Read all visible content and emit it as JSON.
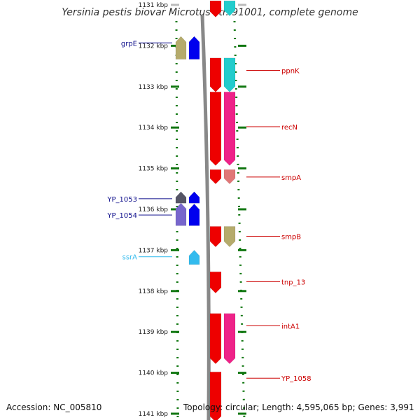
{
  "title": "Yersinia pestis biovar Microtus str. 91001, complete genome",
  "footer": {
    "accession": "Accession: NC_005810",
    "info": "Topology: circular; Length: 4,595,065 bp; Genes: 3,991"
  },
  "ticks": [
    {
      "label": "1131 kbp",
      "kbp": 1131,
      "faded": true
    },
    {
      "label": "1132 kbp",
      "kbp": 1132
    },
    {
      "label": "1133 kbp",
      "kbp": 1133
    },
    {
      "label": "1134 kbp",
      "kbp": 1134
    },
    {
      "label": "1135 kbp",
      "kbp": 1135
    },
    {
      "label": "1136 kbp",
      "kbp": 1136
    },
    {
      "label": "1137 kbp",
      "kbp": 1137
    },
    {
      "label": "1138 kbp",
      "kbp": 1138
    },
    {
      "label": "1139 kbp",
      "kbp": 1139
    },
    {
      "label": "1140 kbp",
      "kbp": 1140
    },
    {
      "label": "1141 kbp",
      "kbp": 1141
    }
  ],
  "genes": [
    {
      "name": "grpE",
      "side": "left",
      "color": "#0b0b8a",
      "label_kbp": 1131.93
    },
    {
      "name": "YP_1053",
      "side": "left",
      "color": "#0b0b8a",
      "label_kbp": 1135.74
    },
    {
      "name": "YP_1054",
      "side": "left",
      "color": "#0b0b8a",
      "label_kbp": 1136.14
    },
    {
      "name": "ssrA",
      "side": "left",
      "color": "#33bbee",
      "label_kbp": 1137.16
    },
    {
      "name": "ppnK",
      "side": "right",
      "color": "#cc0000",
      "label_kbp": 1132.6
    },
    {
      "name": "recN",
      "side": "right",
      "color": "#cc0000",
      "label_kbp": 1133.98
    },
    {
      "name": "smpA",
      "side": "right",
      "color": "#cc0000",
      "label_kbp": 1135.21
    },
    {
      "name": "smpB",
      "side": "right",
      "color": "#cc0000",
      "label_kbp": 1136.66
    },
    {
      "name": "tnp_13",
      "side": "right",
      "color": "#cc0000",
      "label_kbp": 1137.77
    },
    {
      "name": "intA1",
      "side": "right",
      "color": "#cc0000",
      "label_kbp": 1138.85
    },
    {
      "name": "YP_1058",
      "side": "right",
      "color": "#cc0000",
      "label_kbp": 1140.13
    }
  ],
  "features": [
    {
      "track": "left-cog",
      "start": 1131.77,
      "end": 1132.33,
      "color": "#b5ab6c",
      "strand": "+"
    },
    {
      "track": "left-cds",
      "start": 1131.77,
      "end": 1132.33,
      "color": "#0000ee",
      "strand": "+"
    },
    {
      "track": "left-cog",
      "start": 1135.57,
      "end": 1135.85,
      "color": "#555566",
      "strand": "+"
    },
    {
      "track": "left-cog",
      "start": 1135.85,
      "end": 1136.4,
      "color": "#7766cc",
      "strand": "+"
    },
    {
      "track": "left-cds",
      "start": 1135.57,
      "end": 1135.85,
      "color": "#0000ee",
      "strand": "+"
    },
    {
      "track": "left-cds",
      "start": 1135.87,
      "end": 1136.4,
      "color": "#0000ee",
      "strand": "+"
    },
    {
      "track": "left-cds",
      "start": 1137.0,
      "end": 1137.35,
      "color": "#33bbee",
      "strand": "+"
    },
    {
      "track": "right-cds",
      "start": 1130.9,
      "end": 1131.3,
      "color": "#ee0000",
      "strand": "-"
    },
    {
      "track": "right-cog",
      "start": 1130.9,
      "end": 1131.27,
      "color": "#22cccc",
      "strand": "-"
    },
    {
      "track": "right-cds",
      "start": 1132.3,
      "end": 1133.13,
      "color": "#ee0000",
      "strand": "-"
    },
    {
      "track": "right-cog",
      "start": 1132.3,
      "end": 1133.13,
      "color": "#22cccc",
      "strand": "-"
    },
    {
      "track": "right-cds",
      "start": 1133.13,
      "end": 1134.93,
      "color": "#ee0000",
      "strand": "-"
    },
    {
      "track": "right-cog",
      "start": 1133.13,
      "end": 1134.93,
      "color": "#ee2288",
      "strand": "-"
    },
    {
      "track": "right-cds",
      "start": 1135.03,
      "end": 1135.38,
      "color": "#ee0000",
      "strand": "-"
    },
    {
      "track": "right-cog",
      "start": 1135.03,
      "end": 1135.38,
      "color": "#e07777",
      "strand": "-"
    },
    {
      "track": "right-cds",
      "start": 1136.42,
      "end": 1136.92,
      "color": "#ee0000",
      "strand": "-"
    },
    {
      "track": "right-cog",
      "start": 1136.42,
      "end": 1136.92,
      "color": "#b5ab6c",
      "strand": "-"
    },
    {
      "track": "right-cds",
      "start": 1137.53,
      "end": 1138.05,
      "color": "#ee0000",
      "strand": "-"
    },
    {
      "track": "right-cds",
      "start": 1138.55,
      "end": 1139.78,
      "color": "#ee0000",
      "strand": "-"
    },
    {
      "track": "right-cog",
      "start": 1138.55,
      "end": 1139.78,
      "color": "#ee2288",
      "strand": "-"
    },
    {
      "track": "right-cds",
      "start": 1139.98,
      "end": 1141.2,
      "color": "#ee0000",
      "strand": "-"
    }
  ]
}
